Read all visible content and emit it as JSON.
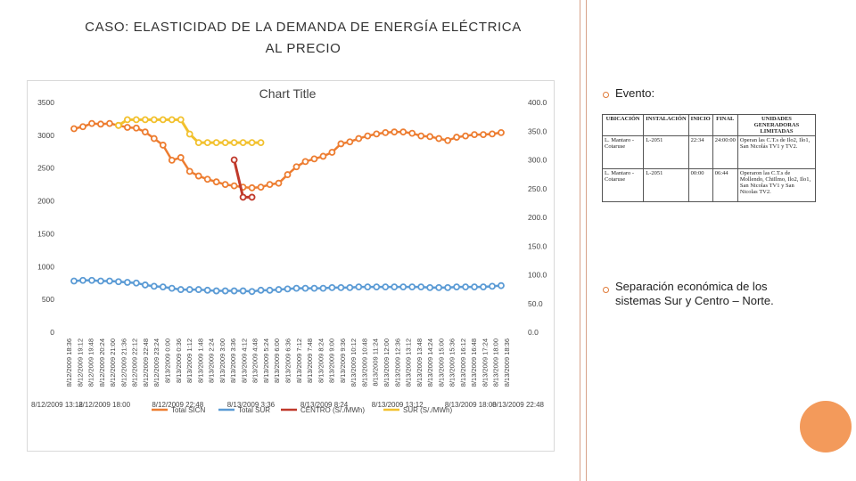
{
  "header": {
    "title_line1": "CASO: ELASTICIDAD DE LA DEMANDA DE ENERGÍA ELÉCTRICA",
    "title_line2": "AL PRECIO"
  },
  "right_panel": {
    "bullet1": "Evento:",
    "bullet2": "Separación económica de los sistemas Sur y Centro – Norte.",
    "event_table": {
      "headers": [
        "UBICACIÓN",
        "INSTALACIÓN",
        "INICIO",
        "FINAL",
        "UNIDADES GENERADORAS LIMITADAS"
      ],
      "rows": [
        [
          "L. Mantaro - Cotaruse",
          "L-2051",
          "22:34",
          "24:00:00",
          "Operan las C.T.s de Ilo2, Ilo1, San Nicolás TV1 y TV2."
        ],
        [
          "L. Mantaro - Cotaruse",
          "L-2051",
          "00:00",
          "06:44",
          "Operaron las C.T.s de Mollendo, ChiIlmo, Ilo2, Ilo1, San Nicolas TV1 y San Nicolas TV2."
        ]
      ]
    }
  },
  "colors": {
    "accent": "#e07b39",
    "circle": "#f39a5b",
    "divider": "#d7a28a"
  },
  "chart_data": {
    "type": "line",
    "title": "Chart Title",
    "left_axis": {
      "ylim": [
        0,
        3500
      ],
      "ticks": [
        "0",
        "500",
        "1000",
        "1500",
        "2000",
        "2500",
        "3000",
        "3500"
      ]
    },
    "right_axis": {
      "ylim": [
        0,
        400
      ],
      "ticks": [
        "0.0",
        "50.0",
        "100.0",
        "150.0",
        "200.0",
        "250.0",
        "300.0",
        "350.0",
        "400.0"
      ]
    },
    "x_labels": [
      "8/12/2009 18:36",
      "8/12/2009 19:12",
      "8/12/2009 19:48",
      "8/12/2009 20:24",
      "8/12/2009 21:00",
      "8/12/2009 21:36",
      "8/12/2009 22:12",
      "8/12/2009 22:48",
      "8/12/2009 23:24",
      "8/13/2009 0:00",
      "8/13/2009 0:36",
      "8/13/2009 1:12",
      "8/13/2009 1:48",
      "8/13/2009 2:24",
      "8/13/2009 3:00",
      "8/13/2009 3:36",
      "8/13/2009 4:12",
      "8/13/2009 4:48",
      "8/13/2009 5:24",
      "8/13/2009 6:00",
      "8/13/2009 6:36",
      "8/13/2009 7:12",
      "8/13/2009 7:48",
      "8/13/2009 8:24",
      "8/13/2009 9:00",
      "8/13/2009 9:36",
      "8/13/2009 10:12",
      "8/13/2009 10:48",
      "8/13/2009 11:24",
      "8/13/2009 12:00",
      "8/13/2009 12:36",
      "8/13/2009 13:12",
      "8/13/2009 13:48",
      "8/13/2009 14:24",
      "8/13/2009 15:00",
      "8/13/2009 15:36",
      "8/13/2009 16:12",
      "8/13/2009 16:48",
      "8/13/2009 17:24",
      "8/13/2009 18:00",
      "8/13/2009 18:36"
    ],
    "secondary_x_labels": [
      "8/12/2009 13:12",
      "8/12/2009 18:00",
      "8/12/2009 22:48",
      "8/13/2009 3:36",
      "8/13/2009 8:24",
      "8/13/2009 13:12",
      "8/13/2009 18:00",
      "8/13/2009 22:48"
    ],
    "series": [
      {
        "name": "Total SICN",
        "axis": "left",
        "color": "#ed7d31",
        "values": [
          3100,
          3130,
          3180,
          3170,
          3180,
          3150,
          3120,
          3110,
          3050,
          2950,
          2850,
          2620,
          2660,
          2450,
          2380,
          2330,
          2290,
          2250,
          2230,
          2210,
          2200,
          2210,
          2250,
          2270,
          2400,
          2520,
          2600,
          2640,
          2680,
          2740,
          2870,
          2900,
          2950,
          2990,
          3020,
          3040,
          3050,
          3050,
          3030,
          2990,
          2980,
          2950,
          2920,
          2970,
          2990,
          3010,
          3010,
          3020,
          3040
        ]
      },
      {
        "name": "Total SUR",
        "axis": "left",
        "color": "#5b9bd5",
        "values": [
          780,
          790,
          790,
          780,
          780,
          770,
          760,
          750,
          720,
          700,
          690,
          670,
          650,
          650,
          650,
          640,
          630,
          630,
          630,
          630,
          620,
          640,
          640,
          650,
          660,
          670,
          670,
          670,
          670,
          680,
          680,
          680,
          690,
          690,
          690,
          690,
          690,
          690,
          690,
          690,
          680,
          680,
          680,
          690,
          690,
          690,
          690,
          700,
          710
        ]
      },
      {
        "name": "CENTRO (S/./MWh)",
        "axis": "right",
        "color": "#c0392b",
        "values": [
          null,
          null,
          null,
          null,
          null,
          null,
          null,
          null,
          null,
          null,
          null,
          null,
          null,
          null,
          null,
          null,
          null,
          null,
          300.0,
          235.0,
          235.0,
          null,
          null,
          null,
          null,
          null,
          null,
          null,
          null,
          null,
          null,
          null,
          null,
          null,
          null,
          null,
          null,
          null,
          null,
          null,
          null,
          null,
          null,
          null,
          null,
          null,
          null,
          null,
          null
        ]
      },
      {
        "name": "SUR (S/./MWh)",
        "axis": "right",
        "color": "#f2c12e",
        "values": [
          null,
          null,
          null,
          null,
          null,
          360.0,
          370.0,
          370.0,
          370.0,
          370.0,
          370.0,
          370.0,
          370.0,
          345.0,
          330.0,
          330.0,
          330.0,
          330.0,
          330.0,
          330.0,
          330.0,
          330.0,
          null,
          null,
          null,
          null,
          null,
          null,
          null,
          null,
          null,
          null,
          null,
          null,
          null,
          null,
          null,
          null,
          null,
          null,
          null,
          null,
          null,
          null,
          null,
          null,
          null,
          null,
          null
        ]
      }
    ],
    "legend_position": "bottom",
    "grid": false
  }
}
